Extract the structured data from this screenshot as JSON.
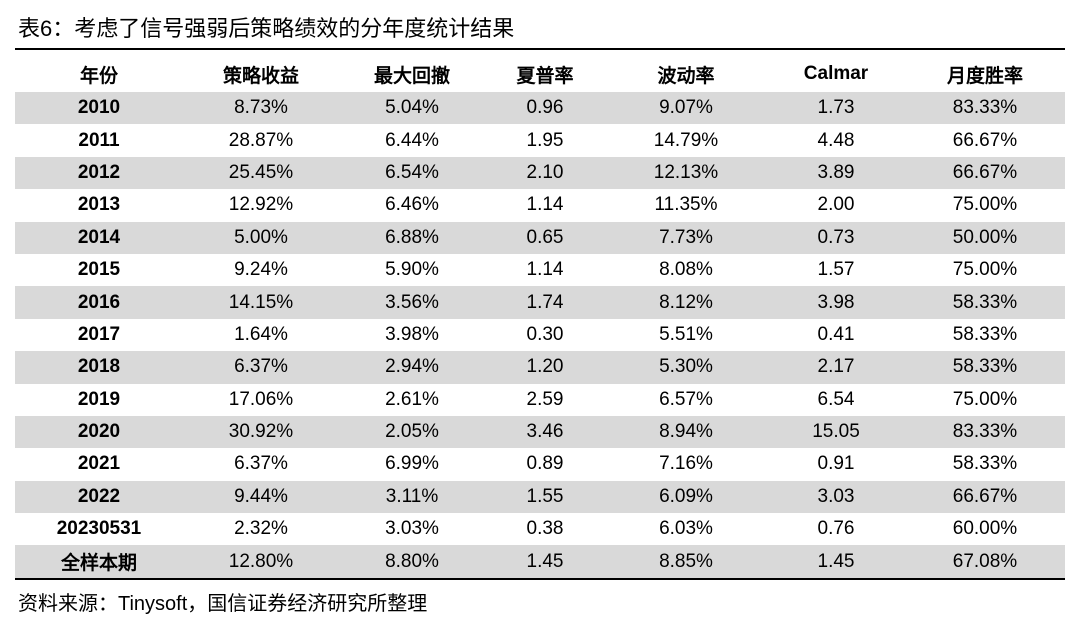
{
  "title": "表6：考虑了信号强弱后策略绩效的分年度统计结果",
  "table": {
    "headers": [
      "年份",
      "策略收益",
      "最大回撤",
      "夏普率",
      "波动率",
      "Calmar",
      "月度胜率"
    ],
    "rows": [
      [
        "2010",
        "8.73%",
        "5.04%",
        "0.96",
        "9.07%",
        "1.73",
        "83.33%"
      ],
      [
        "2011",
        "28.87%",
        "6.44%",
        "1.95",
        "14.79%",
        "4.48",
        "66.67%"
      ],
      [
        "2012",
        "25.45%",
        "6.54%",
        "2.10",
        "12.13%",
        "3.89",
        "66.67%"
      ],
      [
        "2013",
        "12.92%",
        "6.46%",
        "1.14",
        "11.35%",
        "2.00",
        "75.00%"
      ],
      [
        "2014",
        "5.00%",
        "6.88%",
        "0.65",
        "7.73%",
        "0.73",
        "50.00%"
      ],
      [
        "2015",
        "9.24%",
        "5.90%",
        "1.14",
        "8.08%",
        "1.57",
        "75.00%"
      ],
      [
        "2016",
        "14.15%",
        "3.56%",
        "1.74",
        "8.12%",
        "3.98",
        "58.33%"
      ],
      [
        "2017",
        "1.64%",
        "3.98%",
        "0.30",
        "5.51%",
        "0.41",
        "58.33%"
      ],
      [
        "2018",
        "6.37%",
        "2.94%",
        "1.20",
        "5.30%",
        "2.17",
        "58.33%"
      ],
      [
        "2019",
        "17.06%",
        "2.61%",
        "2.59",
        "6.57%",
        "6.54",
        "75.00%"
      ],
      [
        "2020",
        "30.92%",
        "2.05%",
        "3.46",
        "8.94%",
        "15.05",
        "83.33%"
      ],
      [
        "2021",
        "6.37%",
        "6.99%",
        "0.89",
        "7.16%",
        "0.91",
        "58.33%"
      ],
      [
        "2022",
        "9.44%",
        "3.11%",
        "1.55",
        "6.09%",
        "3.03",
        "66.67%"
      ],
      [
        "20230531",
        "2.32%",
        "3.03%",
        "0.38",
        "6.03%",
        "0.76",
        "60.00%"
      ],
      [
        "全样本期",
        "12.80%",
        "8.80%",
        "1.45",
        "8.85%",
        "1.45",
        "67.08%"
      ]
    ]
  },
  "source": "资料来源：Tinysoft，国信证券经济研究所整理",
  "colors": {
    "row_shade": "#d9d9d9",
    "rule": "#000000"
  }
}
